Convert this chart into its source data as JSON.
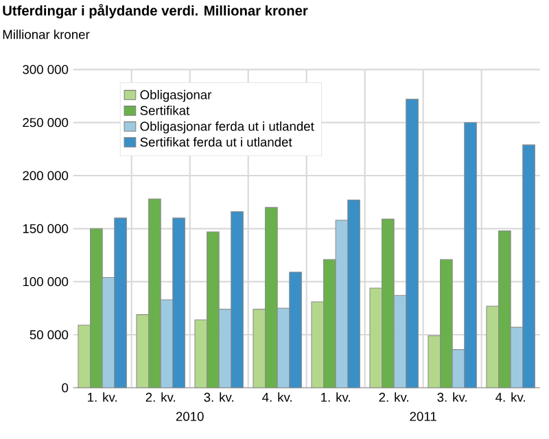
{
  "chart_data": {
    "type": "bar",
    "title": "Utferdingar i pålydande verdi. Millionar kroner",
    "ylabel": "Millionar kroner",
    "categories": [
      "1. kv.",
      "2. kv.",
      "3. kv.",
      "4. kv.",
      "1. kv.",
      "2. kv.",
      "3. kv.",
      "4. kv."
    ],
    "annotations": [
      "2010",
      "2011"
    ],
    "series": [
      {
        "name": "Obligasjonar",
        "color": "#b3d88c",
        "values": [
          59000,
          69000,
          64000,
          74000,
          81000,
          94000,
          49000,
          77000
        ]
      },
      {
        "name": "Sertifikat",
        "color": "#6ab04c",
        "values": [
          150000,
          178000,
          147000,
          170000,
          121000,
          159000,
          121000,
          148000
        ]
      },
      {
        "name": "Obligasjonar ferda ut i utlandet",
        "color": "#9ecae1",
        "values": [
          104000,
          83000,
          74000,
          75000,
          158000,
          87000,
          36000,
          57000
        ]
      },
      {
        "name": "Sertifikat ferda ut i utlandet",
        "color": "#3a8fc6",
        "values": [
          160000,
          160000,
          166000,
          109000,
          177000,
          272000,
          250000,
          229000
        ]
      }
    ],
    "ylim": [
      0,
      300000
    ],
    "yticks": [
      {
        "value": 0,
        "label": "0"
      },
      {
        "value": 50000,
        "label": "50 000"
      },
      {
        "value": 100000,
        "label": "100 000"
      },
      {
        "value": 150000,
        "label": "150 000"
      },
      {
        "value": 200000,
        "label": "200 000"
      },
      {
        "value": 250000,
        "label": "250 000"
      },
      {
        "value": 300000,
        "label": "300 000"
      }
    ],
    "grid": true,
    "legend": "top left"
  }
}
